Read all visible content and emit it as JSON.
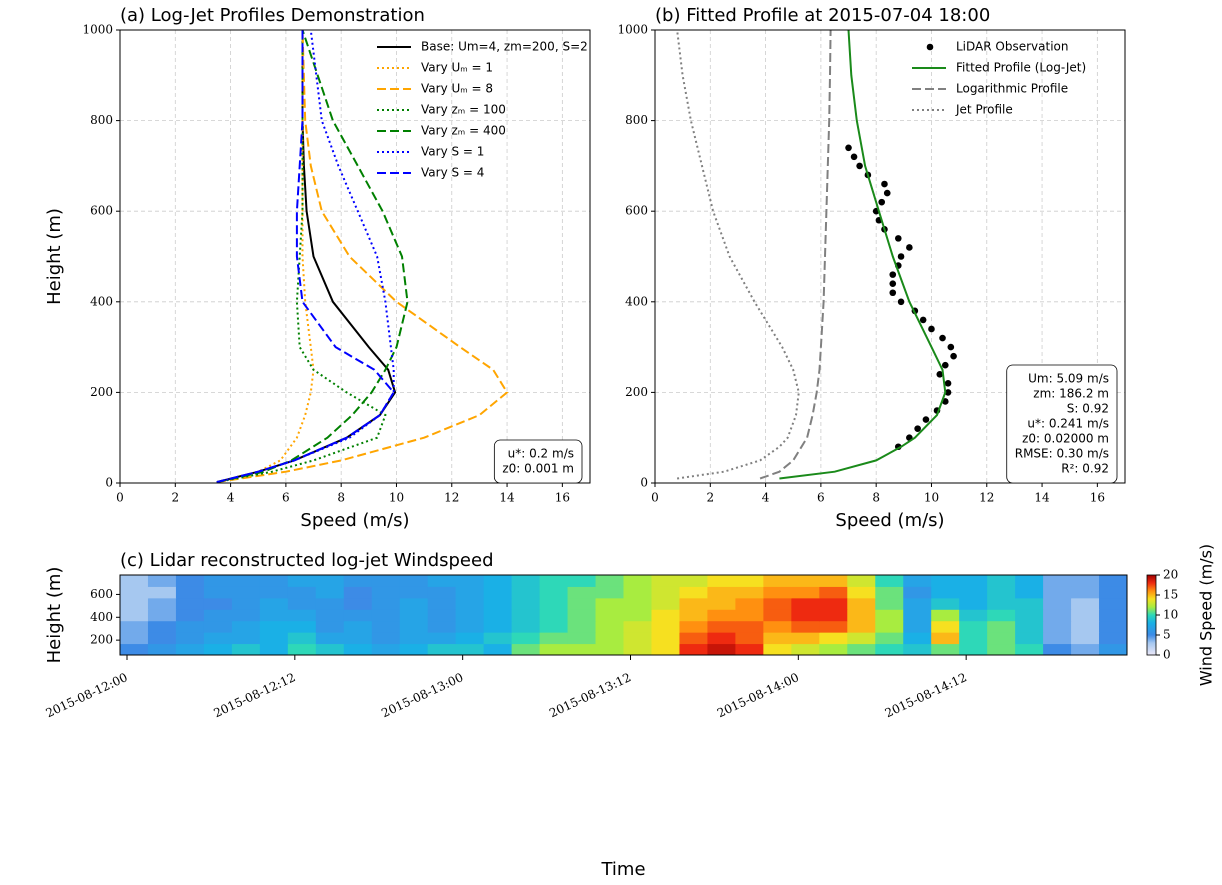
{
  "chart_data": [
    {
      "type": "line",
      "title": "(a) Log-Jet Profiles Demonstration",
      "x_label": "Speed (m/s)",
      "y_label": "Height (m)",
      "y": [
        2,
        25,
        50,
        100,
        150,
        200,
        250,
        300,
        400,
        500,
        600,
        700,
        800,
        1000
      ],
      "series": [
        {
          "name": "Base: Um=4, zm=200, S=2",
          "color": "#000000",
          "dash": "solid",
          "values": [
            3.5,
            5.0,
            6.3,
            8.2,
            9.4,
            9.95,
            9.7,
            9.0,
            7.7,
            7.0,
            6.75,
            6.65,
            6.6,
            6.6
          ]
        },
        {
          "name": "Vary Uₘ = 1",
          "color": "#ffa500",
          "dash": "dotted",
          "values": [
            3.5,
            5.0,
            5.8,
            6.4,
            6.7,
            6.9,
            7.0,
            6.9,
            6.7,
            6.6,
            6.6,
            6.6,
            6.6,
            6.6
          ]
        },
        {
          "name": "Vary Uₘ = 8",
          "color": "#ffa500",
          "dash": "dashed",
          "values": [
            3.5,
            6.0,
            8.0,
            11.0,
            13.0,
            14.0,
            13.5,
            12.3,
            10.0,
            8.3,
            7.3,
            6.9,
            6.7,
            6.6
          ]
        },
        {
          "name": "Vary zₘ = 100",
          "color": "#008000",
          "dash": "dotted",
          "values": [
            3.5,
            5.5,
            7.0,
            9.3,
            9.6,
            8.2,
            7.0,
            6.5,
            6.4,
            6.5,
            6.6,
            6.6,
            6.6,
            6.6
          ]
        },
        {
          "name": "Vary zₘ = 400",
          "color": "#008000",
          "dash": "dashed",
          "values": [
            3.5,
            5.2,
            6.2,
            7.5,
            8.4,
            9.1,
            9.6,
            10.0,
            10.4,
            10.2,
            9.5,
            8.6,
            7.7,
            6.6
          ]
        },
        {
          "name": "Vary S = 1",
          "color": "#0000ff",
          "dash": "dotted",
          "values": [
            3.5,
            5.0,
            6.3,
            8.3,
            9.4,
            9.9,
            9.9,
            9.8,
            9.6,
            9.3,
            8.6,
            7.9,
            7.3,
            6.9
          ]
        },
        {
          "name": "Vary S = 4",
          "color": "#0000ff",
          "dash": "dashed",
          "values": [
            3.5,
            5.0,
            6.3,
            8.2,
            9.4,
            9.9,
            9.2,
            7.8,
            6.6,
            6.4,
            6.4,
            6.5,
            6.6,
            6.6
          ]
        }
      ],
      "annotation": [
        "u*: 0.2 m/s",
        "z0: 0.001 m"
      ],
      "xlim": [
        0,
        17
      ],
      "ylim": [
        0,
        1000
      ],
      "xticks": [
        0,
        2,
        4,
        6,
        8,
        10,
        12,
        14,
        16
      ],
      "yticks": [
        0,
        200,
        400,
        600,
        800,
        1000
      ],
      "grid": true,
      "legend": "upper right"
    },
    {
      "type": "line",
      "title": "(b) Fitted Profile at 2015-07-04 18:00",
      "x_label": "Speed (m/s)",
      "series": [
        {
          "name": "LiDAR Observation",
          "color": "#000000",
          "mode": "markers",
          "y": [
            740,
            720,
            700,
            680,
            660,
            640,
            620,
            600,
            580,
            560,
            540,
            520,
            500,
            480,
            460,
            440,
            420,
            400,
            380,
            360,
            340,
            320,
            300,
            280,
            260,
            240,
            220,
            200,
            180,
            160,
            140,
            120,
            100,
            80
          ],
          "values": [
            7.0,
            7.2,
            7.4,
            7.7,
            8.3,
            8.4,
            8.2,
            8.0,
            8.1,
            8.3,
            8.8,
            9.2,
            8.9,
            8.8,
            8.6,
            8.6,
            8.6,
            8.9,
            9.4,
            9.7,
            10.0,
            10.4,
            10.7,
            10.8,
            10.5,
            10.3,
            10.6,
            10.6,
            10.5,
            10.2,
            9.8,
            9.5,
            9.2,
            8.8
          ]
        },
        {
          "name": "Fitted Profile (Log-Jet)",
          "color": "#1a8a1a",
          "dash": "solid",
          "y": [
            10,
            25,
            50,
            80,
            100,
            150,
            200,
            250,
            300,
            400,
            500,
            600,
            700,
            800,
            900,
            1000
          ],
          "values": [
            4.5,
            6.5,
            8.0,
            8.9,
            9.4,
            10.2,
            10.5,
            10.4,
            10.0,
            9.2,
            8.6,
            8.1,
            7.6,
            7.3,
            7.1,
            7.0
          ]
        },
        {
          "name": "Logarithmic Profile",
          "color": "#808080",
          "dash": "dashed",
          "y": [
            10,
            25,
            50,
            80,
            100,
            150,
            200,
            250,
            300,
            400,
            500,
            600,
            700,
            800,
            900,
            1000
          ],
          "values": [
            3.8,
            4.5,
            5.0,
            5.3,
            5.5,
            5.7,
            5.85,
            5.95,
            6.0,
            6.1,
            6.15,
            6.2,
            6.25,
            6.3,
            6.33,
            6.35
          ]
        },
        {
          "name": "Jet Profile",
          "color": "#808080",
          "dash": "dotted",
          "y": [
            10,
            25,
            50,
            80,
            100,
            150,
            200,
            250,
            300,
            400,
            500,
            600,
            700,
            800,
            900,
            1000
          ],
          "values": [
            0.8,
            2.5,
            3.8,
            4.5,
            4.8,
            5.1,
            5.2,
            5.0,
            4.6,
            3.6,
            2.7,
            2.1,
            1.7,
            1.3,
            1.0,
            0.8
          ]
        }
      ],
      "annotation": [
        "Um: 5.09 m/s",
        "zm: 186.2 m",
        "S: 0.92",
        "u*: 0.241 m/s",
        "z0: 0.02000 m",
        "RMSE: 0.30 m/s",
        "R²: 0.92"
      ],
      "xlim": [
        0,
        17
      ],
      "ylim": [
        0,
        1000
      ],
      "xticks": [
        0,
        2,
        4,
        6,
        8,
        10,
        12,
        14,
        16
      ],
      "yticks": [
        0,
        200,
        400,
        600,
        800,
        1000
      ],
      "grid": true,
      "legend": "upper right"
    },
    {
      "type": "heatmap",
      "title": "(c) Lidar reconstructed log-jet Windspeed",
      "x_label": "Time",
      "y_label": "Height (m)",
      "colorbar_label": "Wind Speed (m/s)",
      "x": [
        0.5,
        2.5,
        4.5,
        6.5,
        8.5,
        10.5,
        12.5,
        14.5,
        16.5,
        18.5,
        20.5,
        22.5,
        24.5,
        26.5,
        28.5,
        30.5,
        32.5,
        34.5,
        36.5,
        38.5,
        40.5,
        42.5,
        44.5,
        46.5,
        48.5,
        50.5,
        52.5,
        54.5,
        56.5,
        58.5,
        60.5,
        62.5,
        64.5,
        66.5,
        68.5,
        70.5
      ],
      "y": [
        120,
        220,
        320,
        420,
        520,
        620,
        720
      ],
      "values": [
        [
          5,
          6,
          7,
          8,
          9,
          8,
          10,
          9,
          8,
          7,
          8,
          9,
          9,
          8,
          11,
          12,
          12,
          12,
          13,
          14,
          18,
          19,
          18,
          14,
          13,
          12,
          11,
          10,
          9,
          11,
          10,
          11,
          10,
          5,
          4,
          6
        ],
        [
          4,
          5,
          6,
          7,
          7,
          8,
          9,
          7,
          7,
          6,
          7,
          7,
          8,
          9,
          10,
          11,
          11,
          12,
          13,
          14,
          17,
          18,
          17,
          15,
          15,
          14,
          13,
          11,
          8,
          15,
          10,
          11,
          9,
          4,
          3,
          5
        ],
        [
          4,
          5,
          6,
          6,
          7,
          8,
          8,
          6,
          7,
          6,
          7,
          6,
          7,
          8,
          9,
          10,
          11,
          12,
          13,
          14,
          16,
          17,
          17,
          16,
          17,
          17,
          15,
          12,
          7,
          14,
          10,
          11,
          9,
          4,
          3,
          5
        ],
        [
          3,
          4,
          5,
          6,
          6,
          7,
          7,
          6,
          6,
          6,
          7,
          6,
          7,
          8,
          9,
          10,
          11,
          12,
          12,
          14,
          15,
          16,
          16,
          17,
          18,
          18,
          15,
          12,
          7,
          12,
          9,
          10,
          9,
          4,
          3,
          5
        ],
        [
          3,
          4,
          5,
          5,
          6,
          7,
          6,
          6,
          5,
          6,
          7,
          6,
          7,
          8,
          9,
          10,
          11,
          12,
          12,
          13,
          15,
          15,
          16,
          17,
          18,
          18,
          15,
          11,
          7,
          9,
          8,
          9,
          9,
          4,
          3,
          5
        ],
        [
          3,
          3,
          5,
          6,
          6,
          6,
          6,
          7,
          5,
          6,
          6,
          6,
          7,
          8,
          9,
          10,
          11,
          11,
          12,
          13,
          14,
          15,
          15,
          16,
          16,
          17,
          14,
          11,
          6,
          8,
          8,
          9,
          8,
          4,
          4,
          5
        ],
        [
          3,
          4,
          5,
          6,
          6,
          6,
          7,
          7,
          6,
          6,
          6,
          7,
          7,
          8,
          9,
          10,
          10,
          11,
          12,
          13,
          13,
          14,
          14,
          15,
          15,
          15,
          13,
          10,
          7,
          8,
          8,
          9,
          8,
          4,
          4,
          5
        ]
      ],
      "xlim": [
        -0.5,
        71.5
      ],
      "ylim": [
        70,
        770
      ],
      "yticks": [
        200,
        400,
        600
      ],
      "xticks": [
        {
          "value": 0,
          "label": "2015-08-12:00"
        },
        {
          "value": 12,
          "label": "2015-08-12:12"
        },
        {
          "value": 24,
          "label": "2015-08-13:00"
        },
        {
          "value": 36,
          "label": "2015-08-13:12"
        },
        {
          "value": 48,
          "label": "2015-08-14:00"
        },
        {
          "value": 60,
          "label": "2015-08-14:12"
        }
      ],
      "zlim": [
        0,
        20
      ],
      "zticks": [
        0,
        5,
        10,
        15,
        20
      ],
      "colorscale": [
        [
          0,
          "#ebe8f8"
        ],
        [
          3,
          "#a6c8f0"
        ],
        [
          5,
          "#3d8be6"
        ],
        [
          8,
          "#1ab0e6"
        ],
        [
          10,
          "#2ed8b8"
        ],
        [
          12,
          "#a8ec40"
        ],
        [
          14,
          "#f6e020"
        ],
        [
          16,
          "#ff9010"
        ],
        [
          18,
          "#ee2a10"
        ],
        [
          20,
          "#a00000"
        ]
      ]
    }
  ]
}
